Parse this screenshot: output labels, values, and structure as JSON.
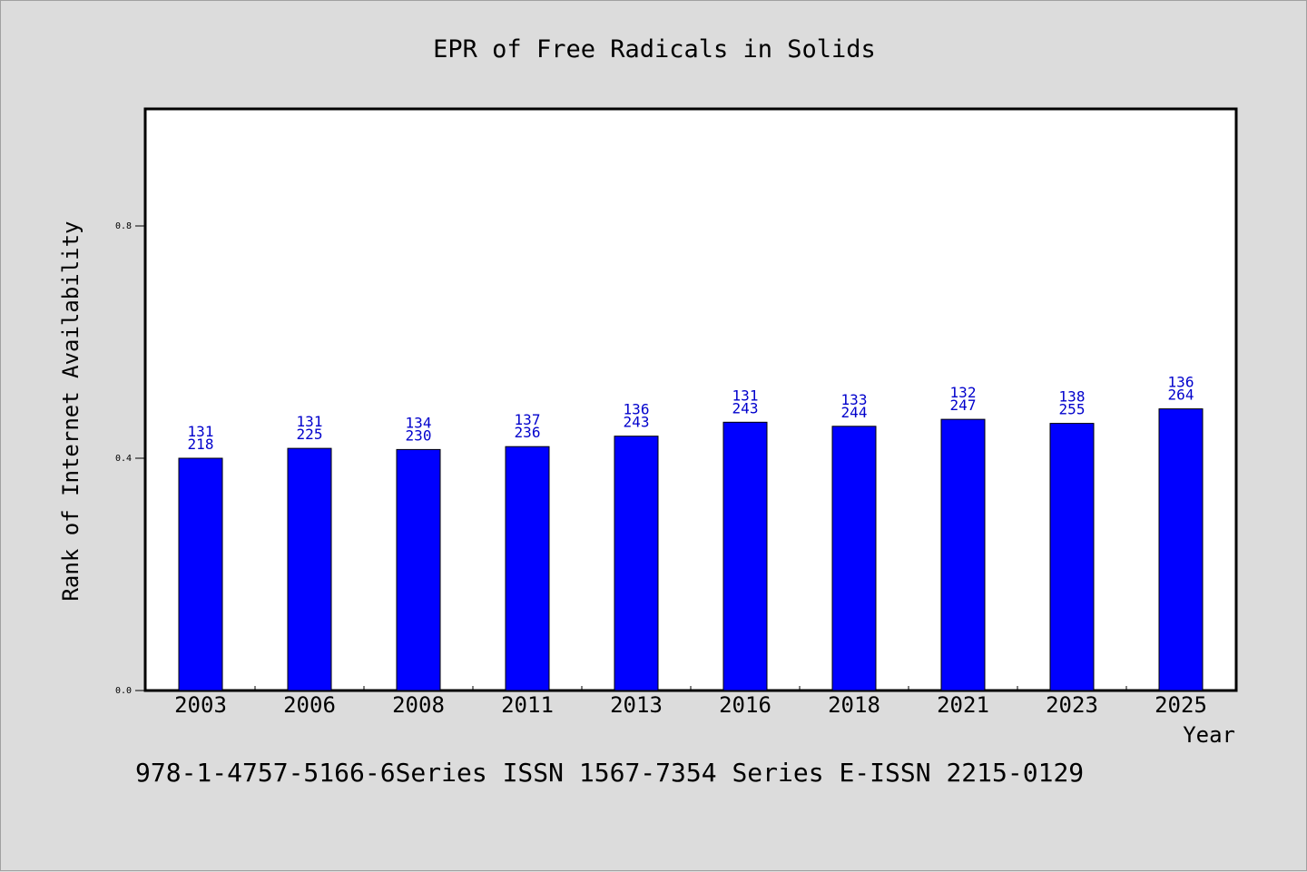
{
  "chart_data": {
    "type": "bar",
    "title": "EPR of Free Radicals in Solids",
    "xlabel": "Year",
    "ylabel": "Rank of Internet Availability",
    "categories": [
      "2003",
      "2006",
      "2008",
      "2011",
      "2013",
      "2016",
      "2018",
      "2021",
      "2023",
      "2025"
    ],
    "values": [
      0.4,
      0.417,
      0.415,
      0.42,
      0.438,
      0.462,
      0.455,
      0.467,
      0.46,
      0.485
    ],
    "bar_labels_top": [
      "131",
      "131",
      "134",
      "137",
      "136",
      "131",
      "133",
      "132",
      "138",
      "136"
    ],
    "bar_labels_bottom": [
      "218",
      "225",
      "230",
      "236",
      "243",
      "243",
      "244",
      "247",
      "255",
      "264"
    ],
    "ylim": [
      0,
      1.0
    ],
    "yticks": [
      "0.0",
      "0.4",
      "0.8"
    ],
    "ytick_values": [
      0.0,
      0.4,
      0.8
    ],
    "grid": false,
    "bar_color": "#0000ff",
    "label_color": "#0000cc"
  },
  "footer": "978-1-4757-5166-6Series ISSN 1567-7354 Series E-ISSN 2215-0129"
}
